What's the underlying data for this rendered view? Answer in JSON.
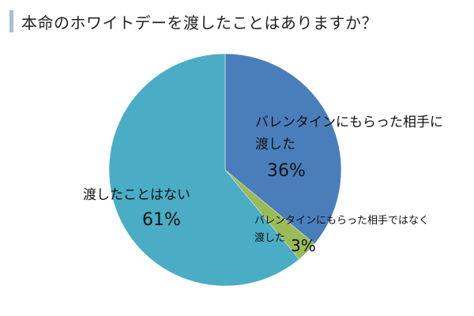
{
  "title": "本命のホワイトデーを渡したことはありますか？",
  "chart_data": {
    "type": "pie",
    "title": "本命のホワイトデーを渡したことはありますか？",
    "start_angle_deg": 0,
    "direction": "clockwise",
    "slices": [
      {
        "label_lines": [
          "バレンタインにもらった相手に",
          "渡した"
        ],
        "value": 36,
        "value_label": "36%",
        "color": "#4a7ebb"
      },
      {
        "label_lines": [
          "バレンタインにもらった相手ではなく",
          "渡した"
        ],
        "value": 3,
        "value_label": "3%",
        "color": "#9bbb59"
      },
      {
        "label_lines": [
          "渡したことはない"
        ],
        "value": 61,
        "value_label": "61%",
        "color": "#4bacc6"
      }
    ]
  }
}
